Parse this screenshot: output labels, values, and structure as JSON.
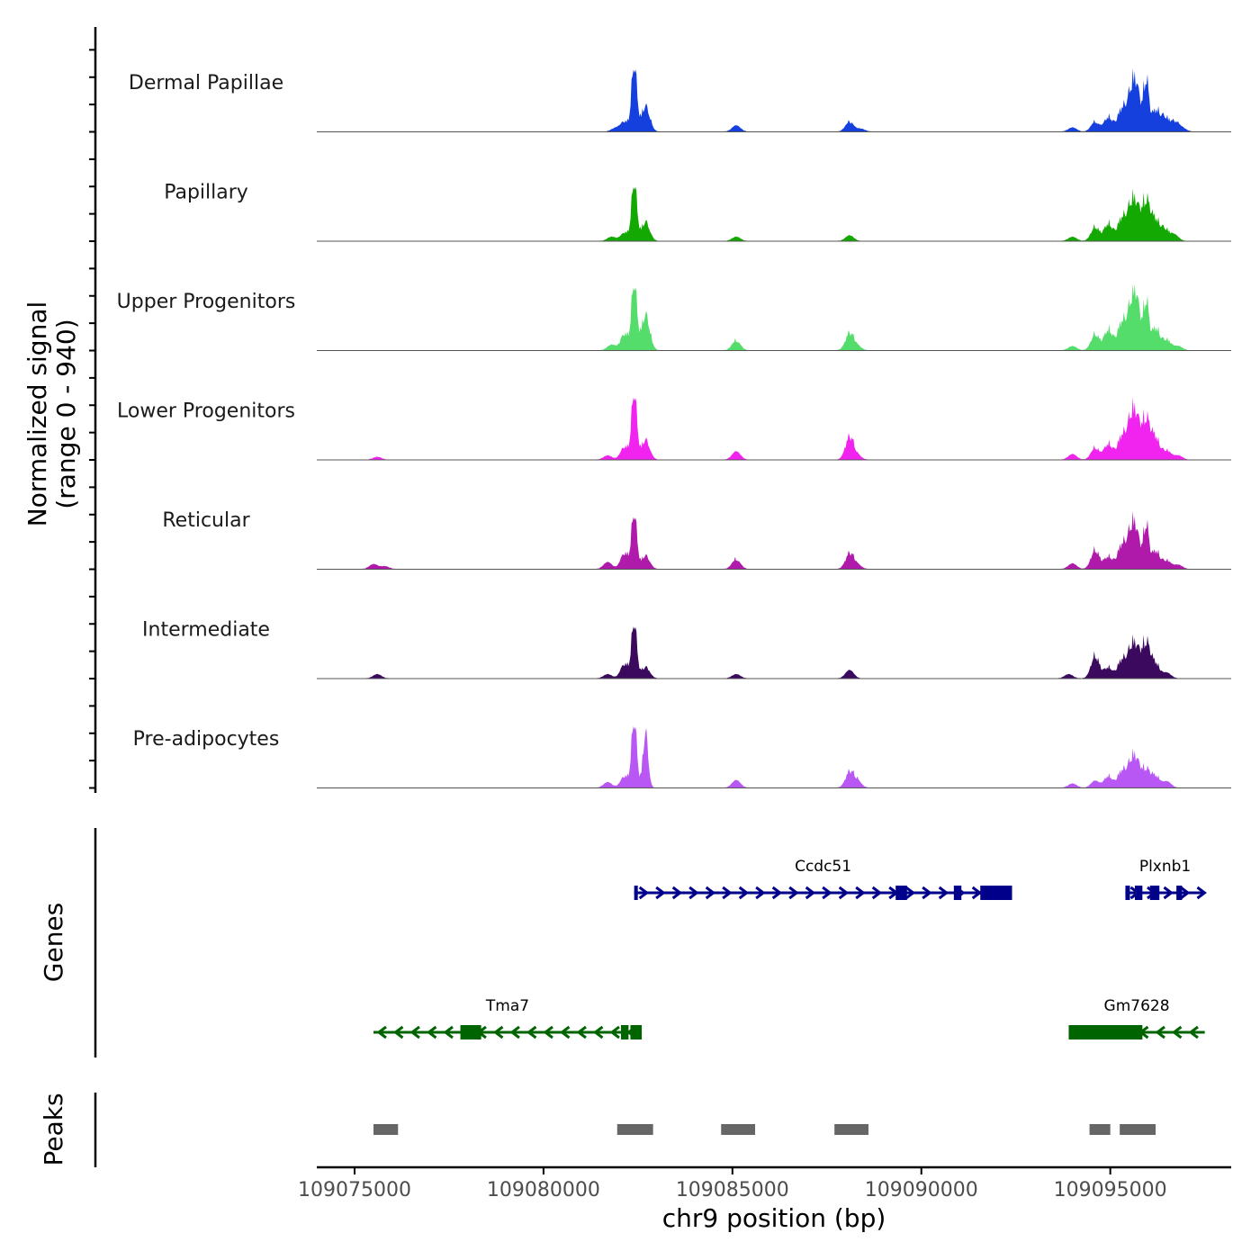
{
  "chart_data": {
    "type": "coverage-track",
    "y_axis_title_line1": "Normalized signal",
    "y_axis_title_line2": "(range 0 - 940)",
    "y_range": [
      0,
      940
    ],
    "genes_panel_title": "Genes",
    "peaks_panel_title": "Peaks",
    "xlabel": "chr9 position (bp)",
    "xlim": [
      109074000,
      109098200
    ],
    "x_ticks": [
      109075000,
      109080000,
      109085000,
      109090000,
      109095000
    ],
    "x_tick_labels": [
      "109075000",
      "109080000",
      "109085000",
      "109090000",
      "109095000"
    ],
    "tracks": [
      {
        "name": "Dermal Papillae",
        "color": "#1540DD",
        "peaks": [
          [
            109082400,
            940
          ],
          [
            109082700,
            360
          ],
          [
            109082150,
            140
          ],
          [
            109081900,
            50
          ],
          [
            109085100,
            90
          ],
          [
            109088100,
            140
          ],
          [
            109088400,
            40
          ],
          [
            109094000,
            60
          ],
          [
            109094600,
            140
          ],
          [
            109094950,
            210
          ],
          [
            109095300,
            310
          ],
          [
            109095550,
            450
          ],
          [
            109095700,
            520
          ],
          [
            109095950,
            720
          ],
          [
            109096200,
            300
          ],
          [
            109096450,
            190
          ],
          [
            109096700,
            130
          ],
          [
            109096900,
            50
          ]
        ]
      },
      {
        "name": "Papillary",
        "color": "#14A803",
        "peaks": [
          [
            109082400,
            820
          ],
          [
            109082700,
            270
          ],
          [
            109082150,
            120
          ],
          [
            109081800,
            60
          ],
          [
            109085100,
            60
          ],
          [
            109088100,
            80
          ],
          [
            109094000,
            60
          ],
          [
            109094600,
            200
          ],
          [
            109094950,
            250
          ],
          [
            109095300,
            310
          ],
          [
            109095550,
            430
          ],
          [
            109095700,
            340
          ],
          [
            109095950,
            560
          ],
          [
            109096200,
            280
          ],
          [
            109096450,
            160
          ],
          [
            109096700,
            90
          ]
        ]
      },
      {
        "name": "Upper Progenitors",
        "color": "#55DD6C",
        "peaks": [
          [
            109082400,
            940
          ],
          [
            109082700,
            500
          ],
          [
            109082150,
            230
          ],
          [
            109081800,
            80
          ],
          [
            109085100,
            140
          ],
          [
            109088100,
            240
          ],
          [
            109088300,
            60
          ],
          [
            109094000,
            60
          ],
          [
            109094600,
            230
          ],
          [
            109094950,
            300
          ],
          [
            109095300,
            380
          ],
          [
            109095550,
            500
          ],
          [
            109095700,
            600
          ],
          [
            109095950,
            680
          ],
          [
            109096200,
            320
          ],
          [
            109096500,
            150
          ],
          [
            109096800,
            60
          ]
        ]
      },
      {
        "name": "Lower Progenitors",
        "color": "#F024EE",
        "peaks": [
          [
            109075600,
            40
          ],
          [
            109082400,
            940
          ],
          [
            109082700,
            280
          ],
          [
            109082150,
            180
          ],
          [
            109081700,
            60
          ],
          [
            109085100,
            120
          ],
          [
            109088100,
            320
          ],
          [
            109088300,
            60
          ],
          [
            109094000,
            80
          ],
          [
            109094600,
            170
          ],
          [
            109094950,
            230
          ],
          [
            109095300,
            320
          ],
          [
            109095550,
            500
          ],
          [
            109095700,
            420
          ],
          [
            109095950,
            560
          ],
          [
            109096200,
            300
          ],
          [
            109096500,
            130
          ],
          [
            109096800,
            60
          ]
        ]
      },
      {
        "name": "Reticular",
        "color": "#AF1AAB",
        "peaks": [
          [
            109075500,
            70
          ],
          [
            109075800,
            40
          ],
          [
            109082400,
            780
          ],
          [
            109082150,
            220
          ],
          [
            109082700,
            190
          ],
          [
            109081700,
            100
          ],
          [
            109085100,
            140
          ],
          [
            109088100,
            220
          ],
          [
            109088300,
            60
          ],
          [
            109094000,
            80
          ],
          [
            109094600,
            270
          ],
          [
            109094950,
            180
          ],
          [
            109095300,
            330
          ],
          [
            109095550,
            460
          ],
          [
            109095700,
            400
          ],
          [
            109095950,
            620
          ],
          [
            109096200,
            260
          ],
          [
            109096500,
            120
          ],
          [
            109096800,
            60
          ]
        ]
      },
      {
        "name": "Intermediate",
        "color": "#3B0A5E",
        "peaks": [
          [
            109075600,
            60
          ],
          [
            109082400,
            780
          ],
          [
            109082150,
            200
          ],
          [
            109082700,
            160
          ],
          [
            109081700,
            60
          ],
          [
            109085100,
            60
          ],
          [
            109088100,
            120
          ],
          [
            109093900,
            60
          ],
          [
            109094600,
            320
          ],
          [
            109094950,
            160
          ],
          [
            109095300,
            250
          ],
          [
            109095550,
            350
          ],
          [
            109095700,
            300
          ],
          [
            109095950,
            500
          ],
          [
            109096200,
            200
          ],
          [
            109096500,
            80
          ]
        ]
      },
      {
        "name": "Pre-adipocytes",
        "color": "#B957F5",
        "peaks": [
          [
            109082400,
            940
          ],
          [
            109082700,
            780
          ],
          [
            109082150,
            160
          ],
          [
            109081700,
            80
          ],
          [
            109085100,
            110
          ],
          [
            109088100,
            220
          ],
          [
            109088300,
            100
          ],
          [
            109094000,
            60
          ],
          [
            109094600,
            100
          ],
          [
            109094950,
            170
          ],
          [
            109095300,
            230
          ],
          [
            109095550,
            300
          ],
          [
            109095700,
            290
          ],
          [
            109095950,
            250
          ],
          [
            109096200,
            160
          ],
          [
            109096500,
            90
          ]
        ]
      }
    ],
    "genes": [
      {
        "name": "Ccdc51",
        "strand": "+",
        "row": 1,
        "color": "#00008B",
        "start": 109082400,
        "end": 109092400,
        "exons": [
          [
            109082400,
            109082480
          ],
          [
            109089320,
            109089620
          ],
          [
            109090860,
            109091060
          ],
          [
            109091560,
            109092400
          ]
        ]
      },
      {
        "name": "Plxnb1",
        "strand": "+",
        "row": 1,
        "color": "#00008B",
        "start": 109095400,
        "end": 109097500,
        "exons": [
          [
            109095400,
            109095520
          ],
          [
            109095650,
            109095850
          ],
          [
            109096050,
            109096300
          ],
          [
            109096750,
            109096900
          ]
        ]
      },
      {
        "name": "Tma7",
        "strand": "-",
        "row": 2,
        "color": "#006400",
        "start": 109075500,
        "end": 109082600,
        "exons": [
          [
            109077800,
            109078350
          ],
          [
            109082050,
            109082250
          ],
          [
            109082300,
            109082600
          ]
        ]
      },
      {
        "name": "Gm7628",
        "strand": "-",
        "row": 2,
        "color": "#006400",
        "start": 109093900,
        "end": 109097500,
        "exons": [
          [
            109093900,
            109095850
          ]
        ]
      }
    ],
    "peaks": [
      [
        109075500,
        109076150
      ],
      [
        109081950,
        109082900
      ],
      [
        109084700,
        109085600
      ],
      [
        109087700,
        109088600
      ],
      [
        109094450,
        109095000
      ],
      [
        109095250,
        109096200
      ]
    ]
  }
}
